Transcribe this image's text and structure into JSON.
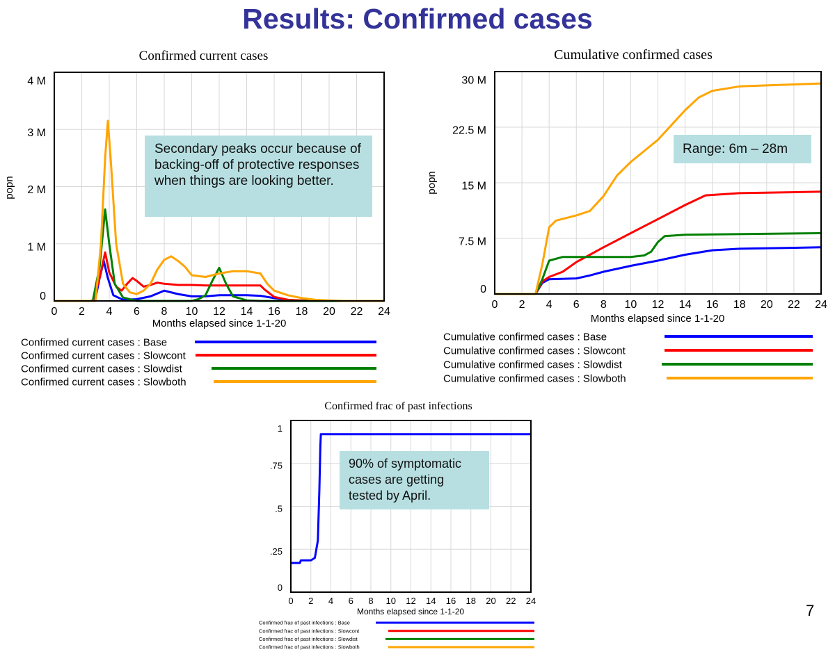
{
  "slide": {
    "title": "Results: Confirmed cases",
    "page_number": "7"
  },
  "chart_data": [
    {
      "type": "line",
      "title": "Confirmed current cases",
      "xlabel": "Months elapsed since 1-1-20",
      "ylabel": "popn",
      "xlim": [
        0,
        24
      ],
      "ylim": [
        0,
        4000000
      ],
      "xticks": [
        "0",
        "2",
        "4",
        "6",
        "8",
        "10",
        "12",
        "14",
        "16",
        "18",
        "20",
        "22",
        "24"
      ],
      "yticks": [
        {
          "value": 0,
          "label": "0"
        },
        {
          "value": 1000000,
          "label": "1 M"
        },
        {
          "value": 2000000,
          "label": "2 M"
        },
        {
          "value": 3000000,
          "label": "3 M"
        },
        {
          "value": 4000000,
          "label": "4 M"
        }
      ],
      "grid": true,
      "legend_position": "bottom",
      "annotation": "Secondary peaks occur because of backing-off of protective responses when things are looking better.",
      "series": [
        {
          "name": "Confirmed current cases : Base",
          "color": "#0000ff",
          "x": [
            0,
            2.7,
            3,
            3.3,
            3.6,
            3.9,
            4.3,
            5,
            6,
            7,
            8,
            9,
            10,
            11,
            12,
            13,
            14,
            15,
            16,
            17,
            18,
            24
          ],
          "y": [
            0,
            0,
            50000,
            400000,
            700000,
            400000,
            100000,
            20000,
            30000,
            80000,
            180000,
            120000,
            80000,
            80000,
            100000,
            100000,
            100000,
            90000,
            50000,
            20000,
            0,
            0
          ]
        },
        {
          "name": "Confirmed current cases : Slowcont",
          "color": "#ff0000",
          "x": [
            0,
            2.8,
            3.3,
            3.7,
            4,
            4.5,
            4.9,
            5.3,
            5.7,
            6,
            6.5,
            7,
            7.5,
            8,
            9,
            10,
            11,
            12,
            13,
            14,
            15,
            15.3,
            16,
            17,
            18,
            19,
            24
          ],
          "y": [
            0,
            0,
            400000,
            850000,
            500000,
            250000,
            180000,
            300000,
            400000,
            350000,
            250000,
            280000,
            320000,
            300000,
            280000,
            280000,
            270000,
            270000,
            270000,
            270000,
            270000,
            200000,
            70000,
            20000,
            10000,
            0,
            0
          ]
        },
        {
          "name": "Confirmed current cases : Slowdist",
          "color": "#008000",
          "x": [
            0,
            2.8,
            3.3,
            3.7,
            4,
            4.4,
            5,
            6,
            10,
            10.5,
            11,
            11.5,
            12,
            12.5,
            13,
            14,
            15,
            24
          ],
          "y": [
            0,
            0,
            600000,
            1600000,
            1000000,
            300000,
            60000,
            0,
            0,
            30000,
            100000,
            350000,
            580000,
            300000,
            80000,
            10000,
            0,
            0
          ]
        },
        {
          "name": "Confirmed current cases : Slowboth",
          "color": "#ffa500",
          "x": [
            0,
            3,
            3.4,
            3.7,
            3.9,
            4.1,
            4.5,
            5,
            5.5,
            6,
            6.5,
            7,
            7.5,
            8,
            8.5,
            9,
            9.5,
            10,
            11,
            12,
            13,
            14,
            15,
            15.5,
            16,
            17,
            18,
            19,
            20,
            21,
            24
          ],
          "y": [
            0,
            0,
            1000000,
            2500000,
            3150000,
            2500000,
            1000000,
            300000,
            150000,
            120000,
            180000,
            300000,
            550000,
            720000,
            780000,
            700000,
            600000,
            450000,
            420000,
            480000,
            520000,
            520000,
            480000,
            300000,
            180000,
            100000,
            50000,
            20000,
            10000,
            0,
            0
          ]
        }
      ]
    },
    {
      "type": "line",
      "title": "Cumulative confirmed cases",
      "xlabel": "Months elapsed since 1-1-20",
      "ylabel": "popn",
      "xlim": [
        0,
        24
      ],
      "ylim": [
        0,
        30000000
      ],
      "xticks": [
        "0",
        "2",
        "4",
        "6",
        "8",
        "10",
        "12",
        "14",
        "16",
        "18",
        "20",
        "22",
        "24"
      ],
      "yticks": [
        {
          "value": 0,
          "label": "0"
        },
        {
          "value": 7500000,
          "label": "7.5 M"
        },
        {
          "value": 15000000,
          "label": "15 M"
        },
        {
          "value": 22500000,
          "label": "22.5 M"
        },
        {
          "value": 30000000,
          "label": "30 M"
        }
      ],
      "grid": true,
      "legend_position": "bottom",
      "annotation": "Range: 6m – 28m",
      "series": [
        {
          "name": "Cumulative confirmed cases : Base",
          "color": "#0000ff",
          "x": [
            0,
            3,
            3.5,
            4,
            6,
            7,
            8,
            10,
            12,
            14,
            16,
            18,
            24
          ],
          "y": [
            0,
            0,
            1500000,
            2000000,
            2100000,
            2500000,
            3000000,
            3800000,
            4500000,
            5300000,
            5900000,
            6100000,
            6300000
          ]
        },
        {
          "name": "Cumulative confirmed cases : Slowcont",
          "color": "#ff0000",
          "x": [
            0,
            3,
            3.5,
            4,
            5,
            6,
            7,
            8,
            10,
            12,
            14,
            15.5,
            18,
            24
          ],
          "y": [
            0,
            0,
            1700000,
            2300000,
            3000000,
            4300000,
            5300000,
            6300000,
            8200000,
            10100000,
            12000000,
            13300000,
            13600000,
            13800000
          ]
        },
        {
          "name": "Cumulative confirmed cases : Slowdist",
          "color": "#008000",
          "x": [
            0,
            3,
            3.5,
            4,
            5,
            10,
            11,
            11.5,
            12,
            12.5,
            14,
            24
          ],
          "y": [
            0,
            0,
            2000000,
            4500000,
            5000000,
            5000000,
            5200000,
            5700000,
            7000000,
            7800000,
            8000000,
            8200000
          ]
        },
        {
          "name": "Cumulative confirmed cases : Slowboth",
          "color": "#ffa500",
          "x": [
            0,
            3,
            3.5,
            4,
            4.5,
            6,
            7,
            8,
            9,
            10,
            12,
            14,
            15,
            16,
            18,
            24
          ],
          "y": [
            0,
            0,
            4000000,
            9000000,
            9900000,
            10600000,
            11200000,
            13200000,
            16000000,
            17800000,
            20800000,
            24800000,
            26500000,
            27400000,
            28000000,
            28400000
          ]
        }
      ]
    },
    {
      "type": "line",
      "title": "Confirmed frac of past infections",
      "xlabel": "Months elapsed since 1-1-20",
      "ylabel": "",
      "xlim": [
        0,
        24
      ],
      "ylim": [
        0,
        1
      ],
      "xticks": [
        "0",
        "2",
        "4",
        "6",
        "8",
        "10",
        "12",
        "14",
        "16",
        "18",
        "20",
        "22",
        "24"
      ],
      "yticks": [
        {
          "value": 0,
          "label": "0"
        },
        {
          "value": 0.25,
          "label": ".25"
        },
        {
          "value": 0.5,
          "label": ".5"
        },
        {
          "value": 0.75,
          "label": ".75"
        },
        {
          "value": 1,
          "label": "1"
        }
      ],
      "grid": true,
      "legend_position": "bottom",
      "annotation": "90% of symptomatic cases are getting tested by April.",
      "series": [
        {
          "name": "Confirmed frac of past infections : Base",
          "color": "#0000ff",
          "x": [
            0,
            0.9,
            1,
            2,
            2.4,
            2.7,
            2.85,
            2.95,
            3,
            24
          ],
          "y": [
            0.17,
            0.17,
            0.185,
            0.185,
            0.2,
            0.3,
            0.6,
            0.85,
            0.92,
            0.92
          ]
        },
        {
          "name": "Confirmed frac of past infections : Slowcont",
          "color": "#ff0000"
        },
        {
          "name": "Confirmed frac of past infections : Slowdist",
          "color": "#008000"
        },
        {
          "name": "Confirmed frac of past infections : Slowboth",
          "color": "#ffa500"
        }
      ]
    }
  ]
}
